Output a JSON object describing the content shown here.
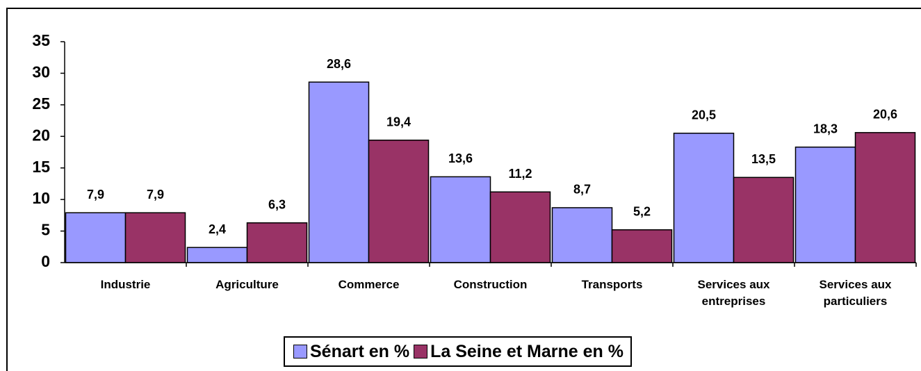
{
  "chart_data": {
    "type": "bar",
    "categories": [
      "Industrie",
      "Agriculture",
      "Commerce",
      "Construction",
      "Transports",
      "Services aux entreprises",
      "Services aux particuliers"
    ],
    "series": [
      {
        "name": "Sénart en %",
        "color": "#9999ff",
        "values": [
          7.9,
          2.4,
          28.6,
          13.6,
          8.7,
          20.5,
          18.3
        ],
        "value_labels": [
          "7,9",
          "2,4",
          "28,6",
          "13,6",
          "8,7",
          "20,5",
          "18,3"
        ]
      },
      {
        "name": "La Seine et Marne en %",
        "color": "#993366",
        "values": [
          7.9,
          6.3,
          19.4,
          11.2,
          5.2,
          13.5,
          20.6
        ],
        "value_labels": [
          "7,9",
          "6,3",
          "19,4",
          "11,2",
          "5,2",
          "13,5",
          "20,6"
        ]
      }
    ],
    "ylim": [
      0,
      35
    ],
    "yticks": [
      0,
      5,
      10,
      15,
      20,
      25,
      30,
      35
    ],
    "grid": false,
    "legend": "bottom"
  }
}
